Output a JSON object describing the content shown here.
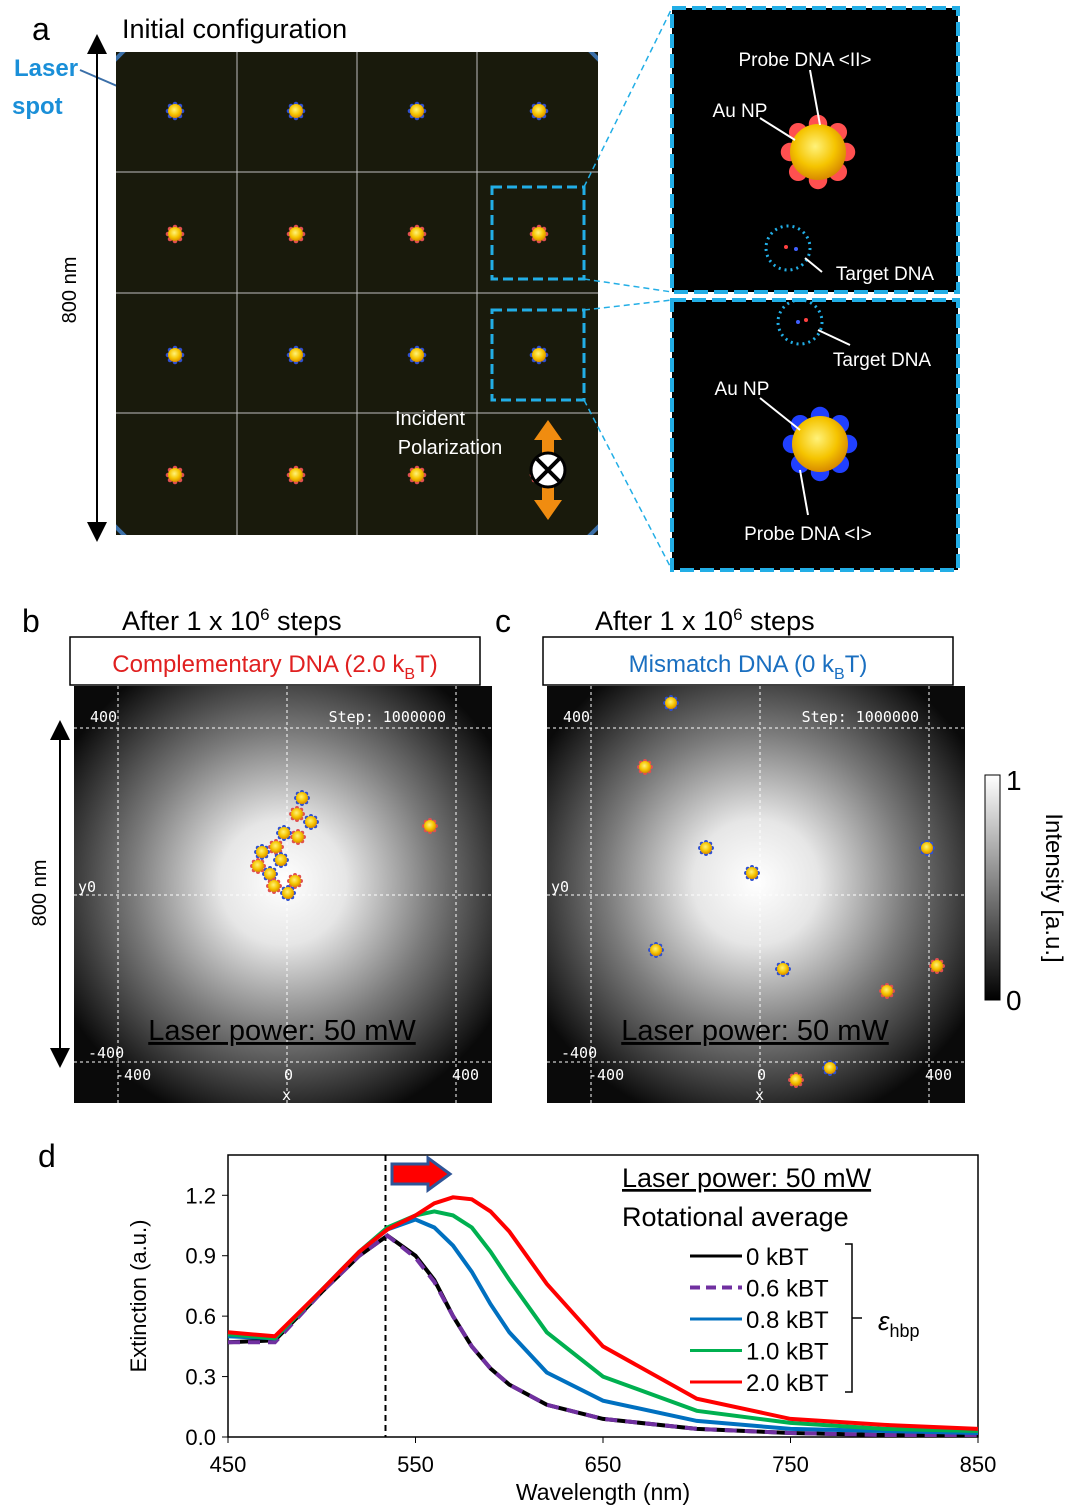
{
  "panel_a": {
    "label": "a",
    "title": "Initial configuration",
    "laser_spot": [
      "Laser",
      "spot"
    ],
    "scale": "800 nm",
    "polarization": [
      "Incident",
      "Polarization"
    ],
    "inset_top": {
      "probe": "Probe DNA <II>",
      "np": "Au NP",
      "target": "Target DNA"
    },
    "inset_bottom": {
      "target": "Target DNA",
      "np": "Au NP",
      "probe": "Probe DNA <I>"
    }
  },
  "panel_b": {
    "label": "b",
    "title": [
      "After 1 x 10",
      "6",
      " steps"
    ],
    "box": [
      "Complementary DNA (2.0 k",
      "B",
      "T)"
    ],
    "step": "Step: 1000000",
    "y_top": "400",
    "y_mid": "y0",
    "y_bottom": "-400",
    "x_left": "-400",
    "x_mid": "0",
    "x_right": "400",
    "x_name": "x",
    "power": "Laser power: 50 mW",
    "scale": "800 nm"
  },
  "panel_c": {
    "label": "c",
    "title": [
      "After 1 x 10",
      "6",
      " steps"
    ],
    "box": [
      "Mismatch DNA (0 k",
      "B",
      "T)"
    ],
    "step": "Step: 1000000",
    "y_top": "400",
    "y_mid": "y0",
    "y_bottom": "-400",
    "x_left": "-400",
    "x_mid": "0",
    "x_right": "400",
    "x_name": "x",
    "power": "Laser power: 50 mW"
  },
  "colorbar": {
    "top": "1",
    "bottom": "0",
    "title": "Intensity [a.u.]"
  },
  "chart_data": {
    "type": "line",
    "panel_label": "d",
    "x_label": "Wavelength (nm)",
    "y_label": "Extinction (a.u.)",
    "annotations": [
      "Laser power: 50 mW",
      "Rotational average"
    ],
    "legend_group": [
      "ε",
      "hbp"
    ],
    "xlim": [
      450,
      850
    ],
    "xticks": [
      450,
      550,
      650,
      750,
      850
    ],
    "ylim": [
      0,
      1.4
    ],
    "yticks": [
      {
        "value": 0,
        "label": "0.0"
      },
      0.3,
      0.6,
      0.9,
      1.2
    ],
    "vline": 534,
    "x": [
      450,
      475,
      500,
      520,
      535,
      550,
      560,
      570,
      580,
      590,
      600,
      620,
      650,
      700,
      750,
      800,
      850
    ],
    "series": [
      {
        "name": "0 kBT",
        "color": "#000000",
        "dash": false,
        "values": [
          0.47,
          0.48,
          0.72,
          0.9,
          1.0,
          0.9,
          0.78,
          0.6,
          0.45,
          0.34,
          0.26,
          0.16,
          0.09,
          0.04,
          0.02,
          0.01,
          0.01
        ]
      },
      {
        "name": "0.6 kBT",
        "color": "#7030a0",
        "dash": true,
        "values": [
          0.47,
          0.47,
          0.72,
          0.9,
          1.0,
          0.89,
          0.77,
          0.6,
          0.45,
          0.34,
          0.26,
          0.16,
          0.09,
          0.04,
          0.02,
          0.01,
          0.01
        ]
      },
      {
        "name": "0.8 kBT",
        "color": "#0070c0",
        "dash": false,
        "values": [
          0.5,
          0.49,
          0.73,
          0.92,
          1.03,
          1.08,
          1.04,
          0.95,
          0.82,
          0.66,
          0.52,
          0.32,
          0.18,
          0.08,
          0.04,
          0.03,
          0.02
        ]
      },
      {
        "name": "1.0 kBT",
        "color": "#00b050",
        "dash": false,
        "values": [
          0.51,
          0.49,
          0.73,
          0.92,
          1.04,
          1.1,
          1.12,
          1.1,
          1.04,
          0.92,
          0.78,
          0.52,
          0.3,
          0.13,
          0.07,
          0.04,
          0.03
        ]
      },
      {
        "name": "2.0 kBT",
        "color": "#ff0000",
        "dash": false,
        "values": [
          0.52,
          0.5,
          0.73,
          0.92,
          1.03,
          1.1,
          1.16,
          1.19,
          1.18,
          1.12,
          1.02,
          0.76,
          0.45,
          0.19,
          0.09,
          0.06,
          0.04
        ]
      }
    ]
  }
}
